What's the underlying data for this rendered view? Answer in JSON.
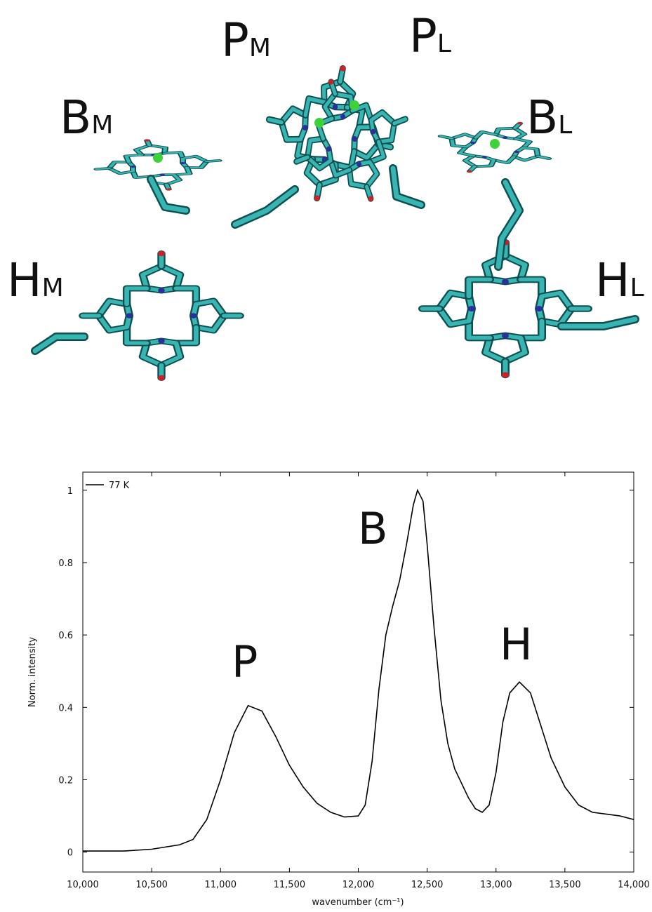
{
  "figure_labels": [
    {
      "main": "P",
      "sub": "M"
    },
    {
      "main": "P",
      "sub": "L"
    },
    {
      "main": "B",
      "sub": "M"
    },
    {
      "main": "B",
      "sub": "L"
    },
    {
      "main": "H",
      "sub": "M"
    },
    {
      "main": "H",
      "sub": "L"
    }
  ],
  "chart_data": {
    "type": "line",
    "x_label": "wavenumber (cm⁻¹)",
    "y_label": "Norm. intensity",
    "annotations": [
      "P",
      "B",
      "H"
    ],
    "x": [
      10000,
      10300,
      10500,
      10700,
      10800,
      10900,
      11000,
      11100,
      11200,
      11300,
      11400,
      11500,
      11600,
      11700,
      11800,
      11900,
      12000,
      12050,
      12100,
      12150,
      12200,
      12250,
      12300,
      12350,
      12400,
      12430,
      12470,
      12500,
      12550,
      12600,
      12650,
      12700,
      12800,
      12850,
      12900,
      12950,
      13000,
      13050,
      13100,
      13170,
      13250,
      13300,
      13400,
      13500,
      13600,
      13700,
      13800,
      13900,
      14000
    ],
    "series": [
      {
        "name": "77 K",
        "color": "#000000",
        "values": [
          0.003,
          0.003,
          0.008,
          0.02,
          0.035,
          0.09,
          0.2,
          0.33,
          0.405,
          0.39,
          0.32,
          0.24,
          0.18,
          0.135,
          0.11,
          0.097,
          0.1,
          0.13,
          0.25,
          0.45,
          0.6,
          0.68,
          0.75,
          0.85,
          0.96,
          1.0,
          0.97,
          0.85,
          0.62,
          0.42,
          0.3,
          0.23,
          0.15,
          0.12,
          0.11,
          0.13,
          0.22,
          0.36,
          0.44,
          0.47,
          0.44,
          0.38,
          0.26,
          0.18,
          0.13,
          0.11,
          0.105,
          0.1,
          0.09
        ]
      }
    ],
    "xlim": [
      10000,
      14000
    ],
    "ylim": [
      -0.055,
      1.05
    ],
    "xticks": [
      {
        "value": 10000,
        "label": "10,000"
      },
      {
        "value": 10500,
        "label": "10,500"
      },
      {
        "value": 11000,
        "label": "11,000"
      },
      {
        "value": 11500,
        "label": "11,500"
      },
      {
        "value": 12000,
        "label": "12,000"
      },
      {
        "value": 12500,
        "label": "12,500"
      },
      {
        "value": 13000,
        "label": "13,000"
      },
      {
        "value": 13500,
        "label": "13,500"
      },
      {
        "value": 14000,
        "label": "14,000"
      }
    ],
    "yticks": [
      0,
      0.2,
      0.4,
      0.6,
      0.8,
      1
    ],
    "legend": "upper left",
    "grid": false
  }
}
